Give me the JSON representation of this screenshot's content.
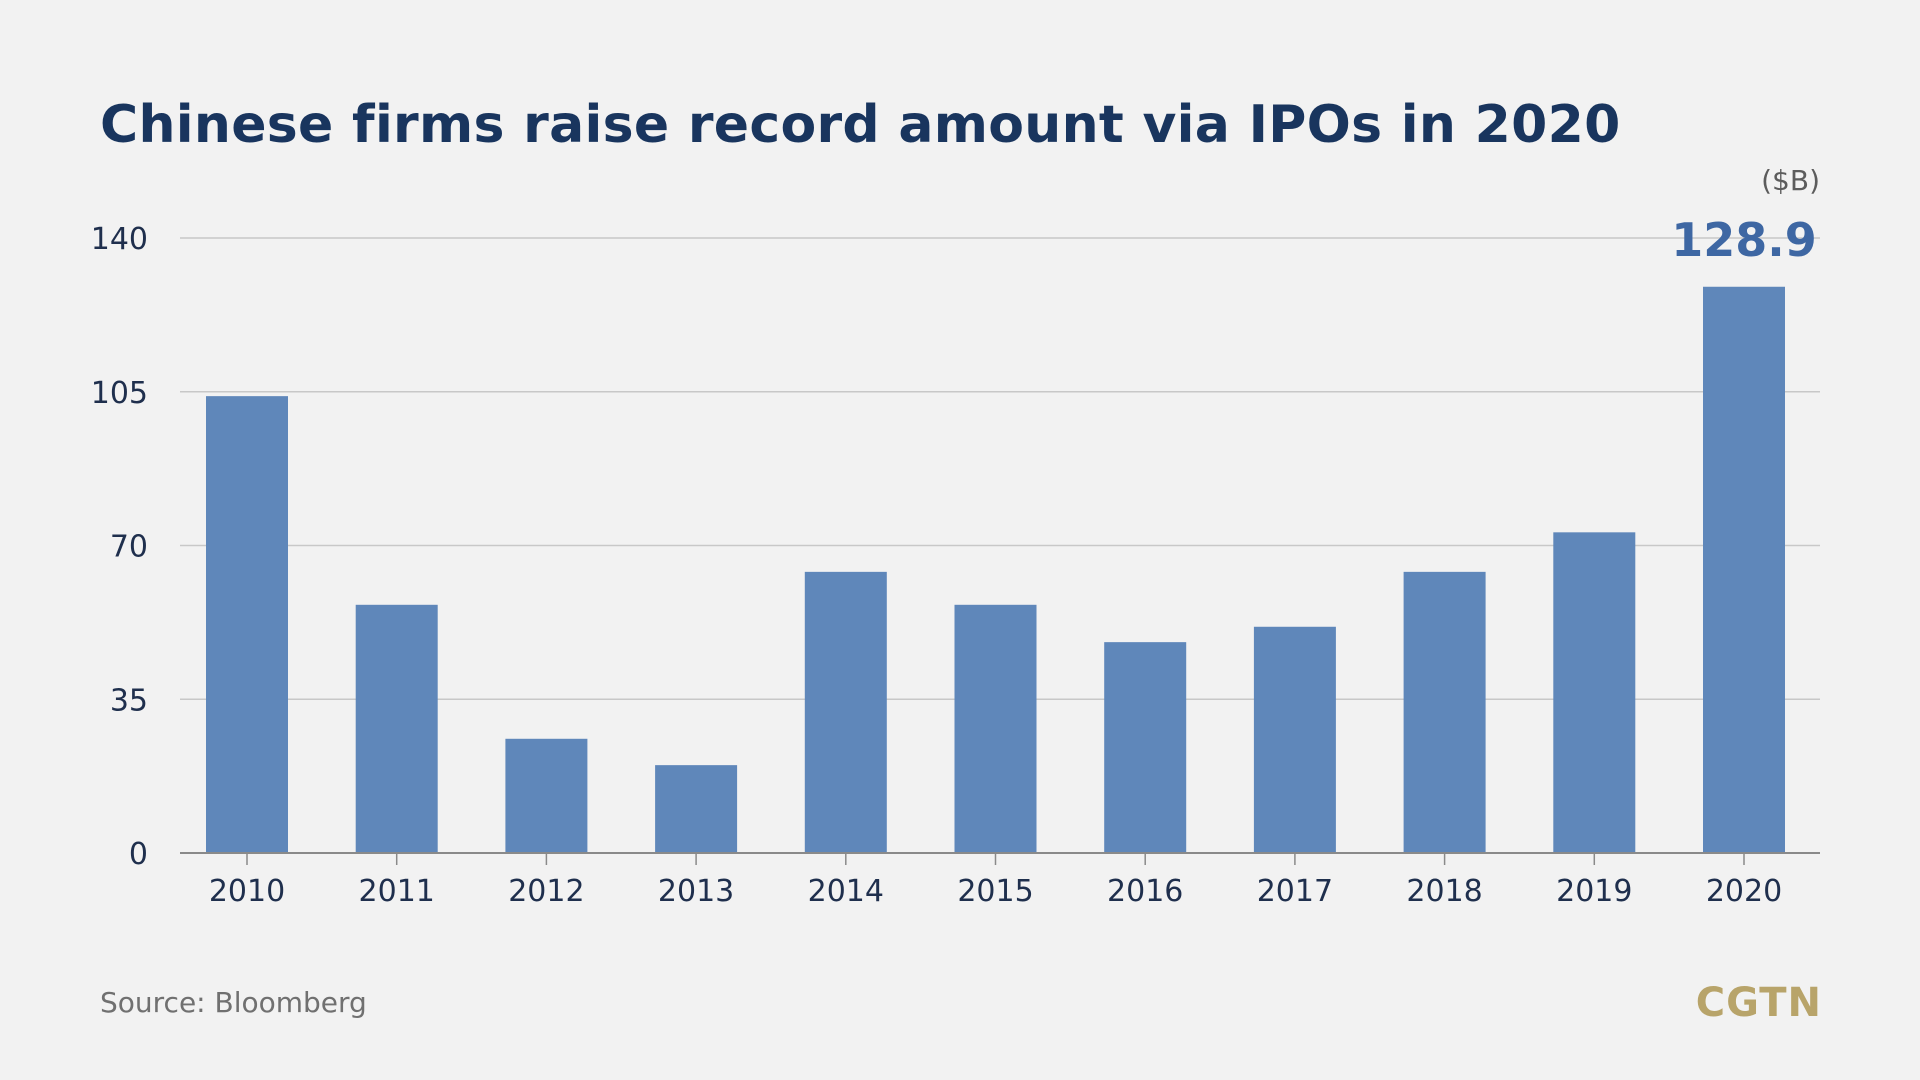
{
  "chart_data": {
    "type": "bar",
    "title": "Chinese firms raise record amount via IPOs in 2020",
    "unit_label": "($B)",
    "categories": [
      "2010",
      "2011",
      "2012",
      "2013",
      "2014",
      "2015",
      "2016",
      "2017",
      "2018",
      "2019",
      "2020"
    ],
    "values": [
      104,
      56.5,
      26,
      20,
      64,
      56.5,
      48,
      51.5,
      64,
      73,
      128.9
    ],
    "highlight_label": "128.9",
    "ylim": [
      0,
      140
    ],
    "yticks": [
      "0",
      "35",
      "70",
      "105",
      "140"
    ],
    "xlabel": "",
    "ylabel": "",
    "grid": true,
    "bar_color": "#5f87ba",
    "grid_color": "#c8c8c8",
    "source": "Source: Bloomberg"
  },
  "branding": {
    "logo": "CGTN",
    "logo_color": "#b8a46a",
    "title_color": "#19355e"
  }
}
